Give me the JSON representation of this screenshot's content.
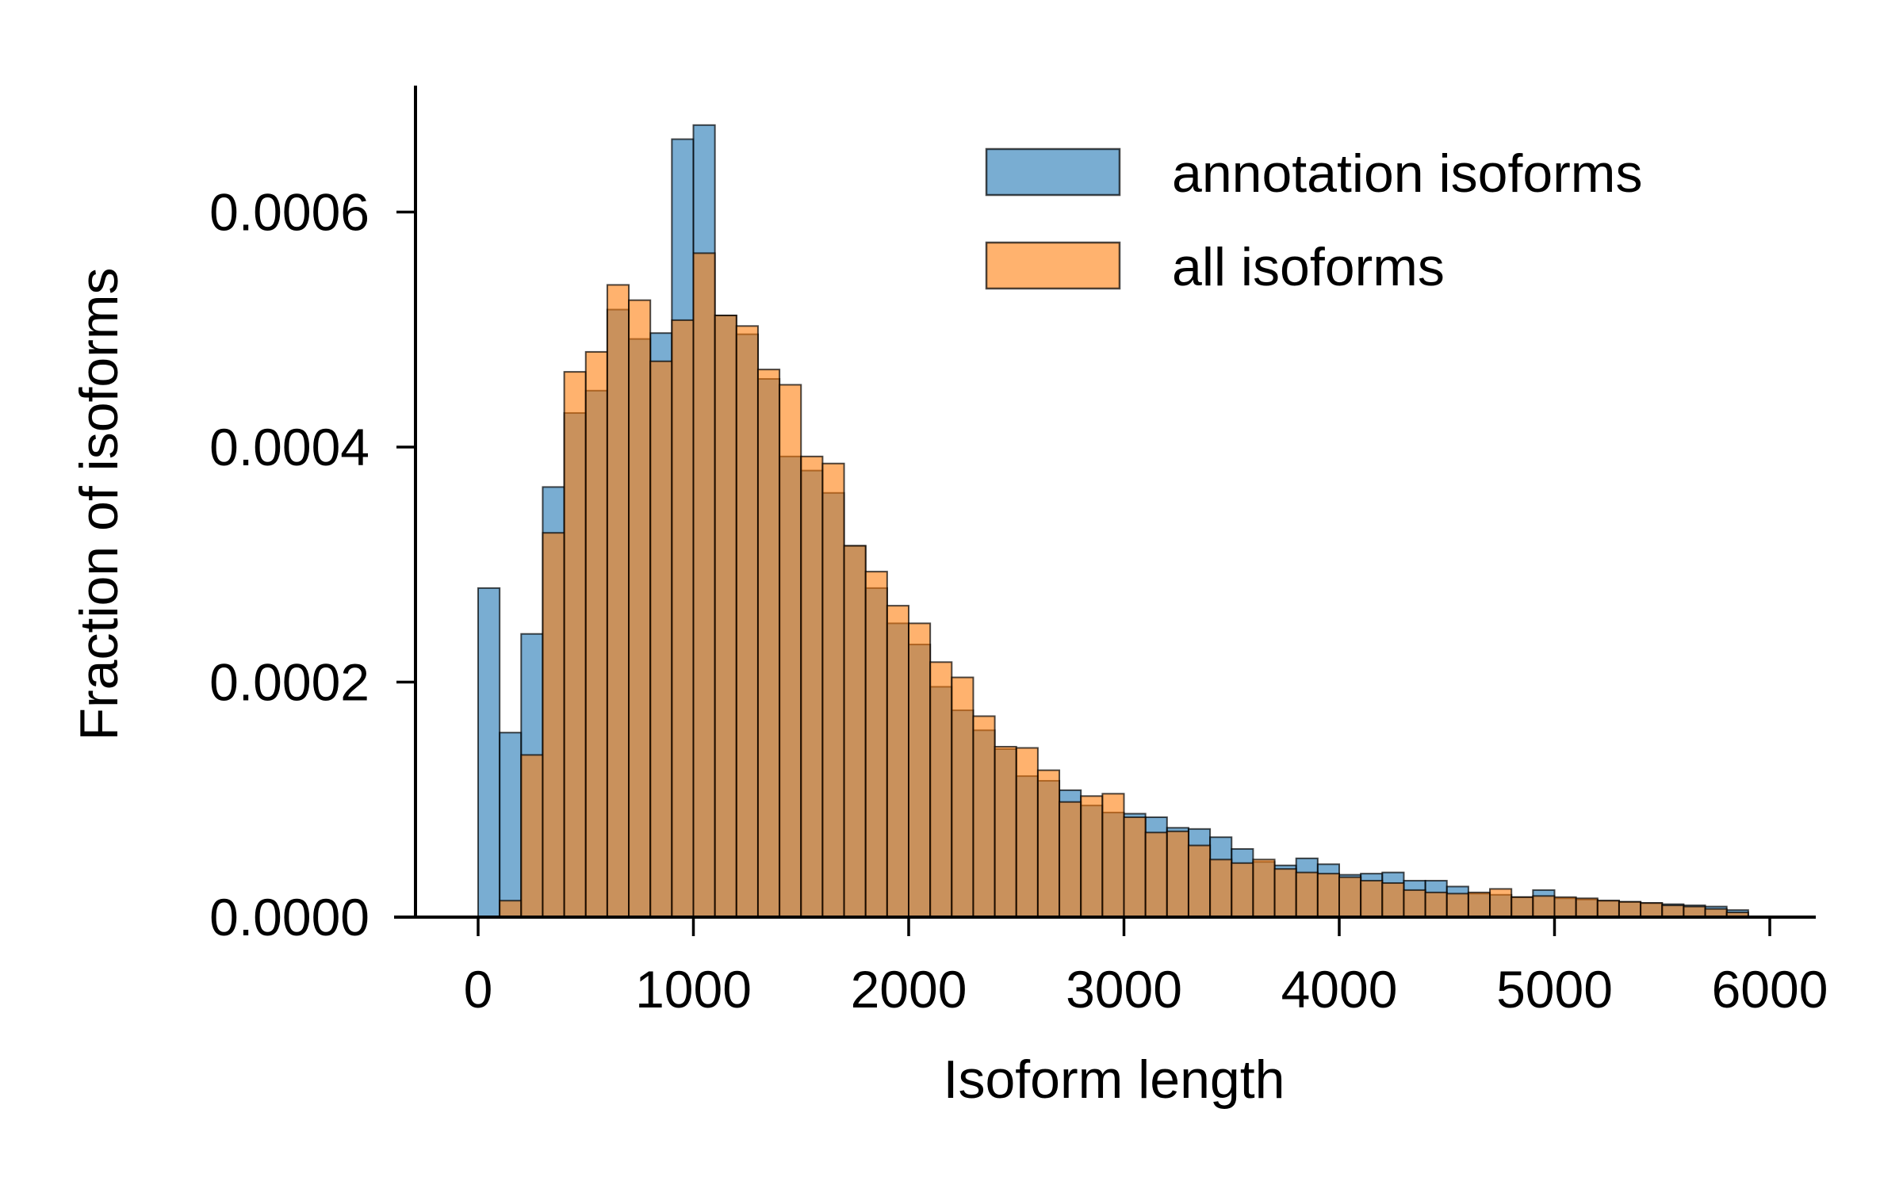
{
  "chart_data": {
    "type": "bar",
    "xlabel": "Isoform length",
    "ylabel": "Fraction of isoforms",
    "xlim": [
      -400,
      6200
    ],
    "ylim": [
      0,
      0.0007
    ],
    "xticks": [
      0,
      1000,
      2000,
      3000,
      4000,
      5000,
      6000
    ],
    "xtick_labels": [
      "0",
      "1000",
      "2000",
      "3000",
      "4000",
      "5000",
      "6000"
    ],
    "yticks": [
      0,
      0.0002,
      0.0004,
      0.0006
    ],
    "ytick_labels": [
      "0.0000",
      "0.0002",
      "0.0004",
      "0.0006"
    ],
    "bin_edges_start": 0,
    "bin_width": 100,
    "grid": false,
    "legend_position": "top-right",
    "series": [
      {
        "name": "annotation isoforms",
        "color": "#1f77b4",
        "values": [
          0.00028,
          0.000157,
          0.000241,
          0.000366,
          0.000429,
          0.000448,
          0.000517,
          0.000492,
          0.000497,
          0.000662,
          0.000674,
          0.000512,
          0.000496,
          0.000458,
          0.000392,
          0.00038,
          0.000361,
          0.000316,
          0.00028,
          0.00025,
          0.000232,
          0.000196,
          0.000176,
          0.000159,
          0.000143,
          0.00012,
          0.000116,
          0.000108,
          9.5e-05,
          8.9e-05,
          8.8e-05,
          8.5e-05,
          7.6e-05,
          7.5e-05,
          6.8e-05,
          5.8e-05,
          4.7e-05,
          4.4e-05,
          5e-05,
          4.5e-05,
          3.6e-05,
          3.7e-05,
          3.8e-05,
          3.1e-05,
          3.1e-05,
          2.6e-05,
          2e-05,
          1.9e-05,
          1.7e-05,
          2.3e-05,
          1.6e-05,
          1.5e-05,
          1.4e-05,
          1.3e-05,
          1.2e-05,
          1.1e-05,
          1e-05,
          9e-06,
          6e-06
        ]
      },
      {
        "name": "all isoforms",
        "color": "#ff7f0e",
        "values": [
          0.0,
          1.4e-05,
          0.000138,
          0.000327,
          0.000464,
          0.000481,
          0.000538,
          0.000525,
          0.000473,
          0.000508,
          0.000565,
          0.000512,
          0.000503,
          0.000466,
          0.000453,
          0.000392,
          0.000386,
          0.000316,
          0.000294,
          0.000265,
          0.00025,
          0.000217,
          0.000204,
          0.000171,
          0.000145,
          0.000144,
          0.000125,
          9.8e-05,
          0.000103,
          0.000105,
          8.5e-05,
          7.2e-05,
          7.3e-05,
          6.1e-05,
          4.9e-05,
          4.6e-05,
          4.9e-05,
          4.1e-05,
          3.8e-05,
          3.7e-05,
          3.4e-05,
          3.1e-05,
          2.9e-05,
          2.3e-05,
          2.1e-05,
          2e-05,
          2.1e-05,
          2.4e-05,
          1.7e-05,
          1.8e-05,
          1.7e-05,
          1.6e-05,
          1.4e-05,
          1.3e-05,
          1.2e-05,
          1e-05,
          9e-06,
          7e-06,
          4e-06
        ]
      }
    ]
  }
}
